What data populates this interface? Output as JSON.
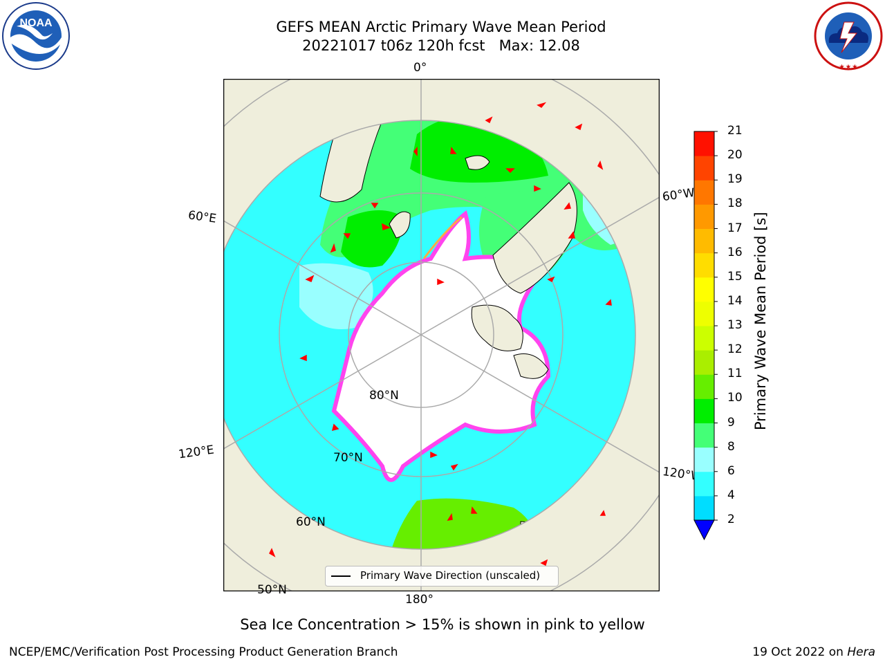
{
  "header": {
    "title_line1": "GEFS MEAN Arctic Primary Wave Mean Period",
    "title_line2": "20221017 t06z 120h fcst   Max: 12.08"
  },
  "logos": {
    "left": {
      "text": "NOAA",
      "ring_text": "NATIONAL OCEANIC AND ATMOSPHERIC ADMINISTRATION · U.S. DEPARTMENT OF COMMERCE"
    },
    "right": {
      "ring_text": "NATIONAL WEATHER SERVICE"
    }
  },
  "map": {
    "longitude_labels": [
      "0°",
      "60°E",
      "120°E",
      "180°",
      "120°W",
      "60°W"
    ],
    "latitude_labels": [
      "80°N",
      "70°N",
      "60°N",
      "50°N"
    ],
    "legend": {
      "label": "Primary Wave Direction (unscaled)"
    },
    "colors": {
      "land": "#efeedc",
      "ice": "#ff44ee",
      "grid": "#aaaaaa",
      "arrow": "#ff0000"
    }
  },
  "colorbar": {
    "title": "Primary Wave Mean Period [s]",
    "tick_labels": [
      "2",
      "4",
      "6",
      "8",
      "9",
      "10",
      "11",
      "12",
      "13",
      "14",
      "15",
      "16",
      "17",
      "18",
      "19",
      "20",
      "21"
    ],
    "colors": [
      "#0066ff",
      "#00ddff",
      "#33ffff",
      "#99ffff",
      "#44ff77",
      "#00ee00",
      "#66ee00",
      "#aaee00",
      "#ccff00",
      "#eeff00",
      "#ffff00",
      "#ffdd00",
      "#ffbb00",
      "#ff9900",
      "#ff7700",
      "#ff4400",
      "#ff1100"
    ],
    "under_color": "#0000ff"
  },
  "footer": {
    "ice_note": "Sea Ice Concentration > 15% is shown in pink to yellow",
    "left": "NCEP/EMC/Verification Post Processing Product Generation Branch",
    "right_date": "19 Oct 2022 on ",
    "right_host": "Hera"
  }
}
